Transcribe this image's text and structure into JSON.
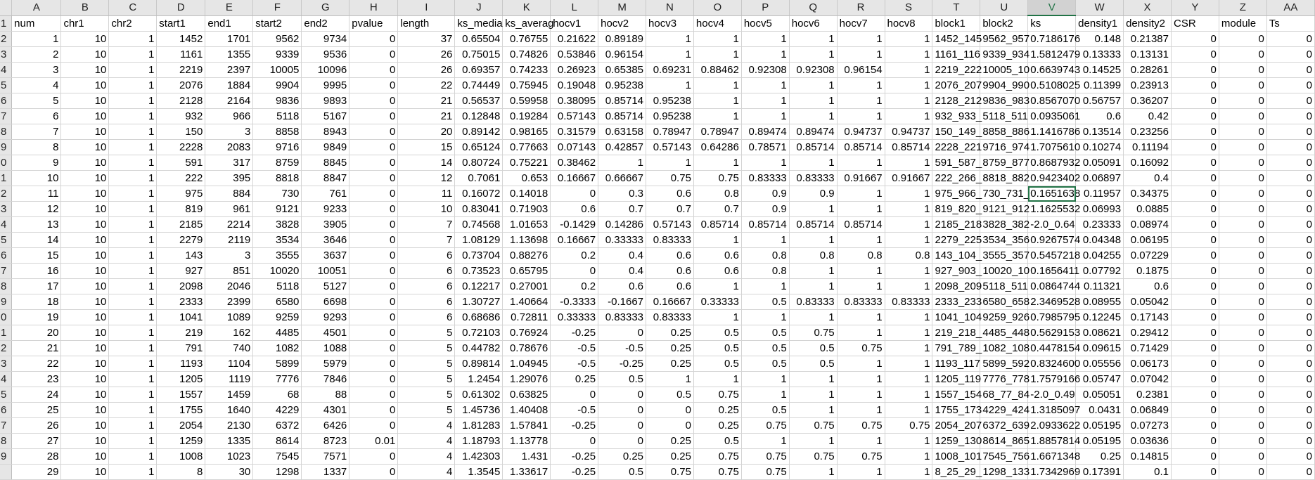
{
  "sheet": {
    "columns": [
      "A",
      "B",
      "C",
      "D",
      "E",
      "F",
      "G",
      "H",
      "I",
      "J",
      "K",
      "L",
      "M",
      "N",
      "O",
      "P",
      "Q",
      "R",
      "S",
      "T",
      "U",
      "V",
      "W",
      "X",
      "Y",
      "Z",
      "AA"
    ],
    "selected_column": "V",
    "row_labels": [
      "1",
      "2",
      "3",
      "4",
      "5",
      "6",
      "7",
      "8",
      "9",
      "0",
      "1",
      "2",
      "3",
      "4",
      "5",
      "6",
      "7",
      "8",
      "9",
      "0",
      "1",
      "2",
      "3",
      "4",
      "5",
      "6",
      "7",
      "8",
      "9"
    ],
    "active_cell": {
      "row": 11,
      "col": 21
    },
    "rows": [
      [
        "num",
        "chr1",
        "chr2",
        "start1",
        "end1",
        "start2",
        "end2",
        "pvalue",
        "length",
        "ks_media",
        "ks_averag",
        "hocv1",
        "hocv2",
        "hocv3",
        "hocv4",
        "hocv5",
        "hocv6",
        "hocv7",
        "hocv8",
        "block1",
        "block2",
        "ks",
        "density1",
        "density2",
        "CSR",
        "module",
        "Ts"
      ],
      [
        "1",
        "10",
        "1",
        "1452",
        "1701",
        "9562",
        "9734",
        "0",
        "37",
        "0.65504",
        "0.76755",
        "0.21622",
        "0.89189",
        "1",
        "1",
        "1",
        "1",
        "1",
        "1",
        "1452_145",
        "9562_957",
        "0.7186176",
        "0.148",
        "0.21387",
        "0",
        "0",
        "0"
      ],
      [
        "2",
        "10",
        "1",
        "1161",
        "1355",
        "9339",
        "9536",
        "0",
        "26",
        "0.75015",
        "0.74826",
        "0.53846",
        "0.96154",
        "1",
        "1",
        "1",
        "1",
        "1",
        "1",
        "1161_116",
        "9339_934",
        "1.5812479",
        "0.13333",
        "0.13131",
        "0",
        "0",
        "0"
      ],
      [
        "3",
        "10",
        "1",
        "2219",
        "2397",
        "10005",
        "10096",
        "0",
        "26",
        "0.69357",
        "0.74233",
        "0.26923",
        "0.65385",
        "0.69231",
        "0.88462",
        "0.92308",
        "0.92308",
        "0.96154",
        "1",
        "2219_222",
        "10005_10",
        "0.6639743",
        "0.14525",
        "0.28261",
        "0",
        "0",
        "0"
      ],
      [
        "4",
        "10",
        "1",
        "2076",
        "1884",
        "9904",
        "9995",
        "0",
        "22",
        "0.74449",
        "0.75945",
        "0.19048",
        "0.95238",
        "1",
        "1",
        "1",
        "1",
        "1",
        "1",
        "2076_207",
        "9904_990",
        "0.5108025",
        "0.11399",
        "0.23913",
        "0",
        "0",
        "0"
      ],
      [
        "5",
        "10",
        "1",
        "2128",
        "2164",
        "9836",
        "9893",
        "0",
        "21",
        "0.56537",
        "0.59958",
        "0.38095",
        "0.85714",
        "0.95238",
        "1",
        "1",
        "1",
        "1",
        "1",
        "2128_212",
        "9836_983",
        "0.8567070",
        "0.56757",
        "0.36207",
        "0",
        "0",
        "0"
      ],
      [
        "6",
        "10",
        "1",
        "932",
        "966",
        "5118",
        "5167",
        "0",
        "21",
        "0.12848",
        "0.19284",
        "0.57143",
        "0.85714",
        "0.95238",
        "1",
        "1",
        "1",
        "1",
        "1",
        "932_933_",
        "5118_511",
        "0.0935061",
        "0.6",
        "0.42",
        "0",
        "0",
        "0"
      ],
      [
        "7",
        "10",
        "1",
        "150",
        "3",
        "8858",
        "8943",
        "0",
        "20",
        "0.89142",
        "0.98165",
        "0.31579",
        "0.63158",
        "0.78947",
        "0.78947",
        "0.89474",
        "0.89474",
        "0.94737",
        "0.94737",
        "150_149_",
        "8858_886",
        "1.1416786",
        "0.13514",
        "0.23256",
        "0",
        "0",
        "0"
      ],
      [
        "8",
        "10",
        "1",
        "2228",
        "2083",
        "9716",
        "9849",
        "0",
        "15",
        "0.65124",
        "0.77663",
        "0.07143",
        "0.42857",
        "0.57143",
        "0.64286",
        "0.78571",
        "0.85714",
        "0.85714",
        "0.85714",
        "2228_221",
        "9716_974",
        "1.7075610",
        "0.10274",
        "0.11194",
        "0",
        "0",
        "0"
      ],
      [
        "9",
        "10",
        "1",
        "591",
        "317",
        "8759",
        "8845",
        "0",
        "14",
        "0.80724",
        "0.75221",
        "0.38462",
        "1",
        "1",
        "1",
        "1",
        "1",
        "1",
        "1",
        "591_587_",
        "8759_877",
        "0.8687932",
        "0.05091",
        "0.16092",
        "0",
        "0",
        "0"
      ],
      [
        "10",
        "10",
        "1",
        "222",
        "395",
        "8818",
        "8847",
        "0",
        "12",
        "0.7061",
        "0.653",
        "0.16667",
        "0.66667",
        "0.75",
        "0.75",
        "0.83333",
        "0.83333",
        "0.91667",
        "0.91667",
        "222_266_",
        "8818_882",
        "0.9423402",
        "0.06897",
        "0.4",
        "0",
        "0",
        "0"
      ],
      [
        "11",
        "10",
        "1",
        "975",
        "884",
        "730",
        "761",
        "0",
        "11",
        "0.16072",
        "0.14018",
        "0",
        "0.3",
        "0.6",
        "0.8",
        "0.9",
        "0.9",
        "1",
        "1",
        "975_966_",
        "730_731_",
        "0.1651638",
        "0.11957",
        "0.34375",
        "0",
        "0",
        "0"
      ],
      [
        "12",
        "10",
        "1",
        "819",
        "961",
        "9121",
        "9233",
        "0",
        "10",
        "0.83041",
        "0.71903",
        "0.6",
        "0.7",
        "0.7",
        "0.7",
        "0.9",
        "1",
        "1",
        "1",
        "819_820_",
        "9121_912",
        "1.1625532",
        "0.06993",
        "0.0885",
        "0",
        "0",
        "0"
      ],
      [
        "13",
        "10",
        "1",
        "2185",
        "2214",
        "3828",
        "3905",
        "0",
        "7",
        "0.74568",
        "1.01653",
        "-0.1429",
        "0.14286",
        "0.57143",
        "0.85714",
        "0.85714",
        "0.85714",
        "0.85714",
        "1",
        "2185_218",
        "3828_382",
        "-2.0_0.64",
        "0.23333",
        "0.08974",
        "0",
        "0",
        "0"
      ],
      [
        "14",
        "10",
        "1",
        "2279",
        "2119",
        "3534",
        "3646",
        "0",
        "7",
        "1.08129",
        "1.13698",
        "0.16667",
        "0.33333",
        "0.83333",
        "1",
        "1",
        "1",
        "1",
        "1",
        "2279_225",
        "3534_356",
        "0.9267574",
        "0.04348",
        "0.06195",
        "0",
        "0",
        "0"
      ],
      [
        "15",
        "10",
        "1",
        "143",
        "3",
        "3555",
        "3637",
        "0",
        "6",
        "0.73704",
        "0.88276",
        "0.2",
        "0.4",
        "0.6",
        "0.6",
        "0.8",
        "0.8",
        "0.8",
        "0.8",
        "143_104_",
        "3555_357",
        "0.5457218",
        "0.04255",
        "0.07229",
        "0",
        "0",
        "0"
      ],
      [
        "16",
        "10",
        "1",
        "927",
        "851",
        "10020",
        "10051",
        "0",
        "6",
        "0.73523",
        "0.65795",
        "0",
        "0.4",
        "0.6",
        "0.6",
        "0.8",
        "1",
        "1",
        "1",
        "927_903_",
        "10020_10",
        "0.1656411",
        "0.07792",
        "0.1875",
        "0",
        "0",
        "0"
      ],
      [
        "17",
        "10",
        "1",
        "2098",
        "2046",
        "5118",
        "5127",
        "0",
        "6",
        "0.12217",
        "0.27001",
        "0.2",
        "0.6",
        "0.6",
        "1",
        "1",
        "1",
        "1",
        "1",
        "2098_209",
        "5118_511",
        "0.0864744",
        "0.11321",
        "0.6",
        "0",
        "0",
        "0"
      ],
      [
        "18",
        "10",
        "1",
        "2333",
        "2399",
        "6580",
        "6698",
        "0",
        "6",
        "1.30727",
        "1.40664",
        "-0.3333",
        "-0.1667",
        "0.16667",
        "0.33333",
        "0.5",
        "0.83333",
        "0.83333",
        "0.83333",
        "2333_233",
        "6580_658",
        "2.3469528",
        "0.08955",
        "0.05042",
        "0",
        "0",
        "0"
      ],
      [
        "19",
        "10",
        "1",
        "1041",
        "1089",
        "9259",
        "9293",
        "0",
        "6",
        "0.68686",
        "0.72811",
        "0.33333",
        "0.83333",
        "0.83333",
        "1",
        "1",
        "1",
        "1",
        "1",
        "1041_104",
        "9259_926",
        "0.7985795",
        "0.12245",
        "0.17143",
        "0",
        "0",
        "0"
      ],
      [
        "20",
        "10",
        "1",
        "219",
        "162",
        "4485",
        "4501",
        "0",
        "5",
        "0.72103",
        "0.76924",
        "-0.25",
        "0",
        "0.25",
        "0.5",
        "0.5",
        "0.75",
        "1",
        "1",
        "219_218_",
        "4485_448",
        "0.5629153",
        "0.08621",
        "0.29412",
        "0",
        "0",
        "0"
      ],
      [
        "21",
        "10",
        "1",
        "791",
        "740",
        "1082",
        "1088",
        "0",
        "5",
        "0.44782",
        "0.78676",
        "-0.5",
        "-0.5",
        "0.25",
        "0.5",
        "0.5",
        "0.5",
        "0.75",
        "1",
        "791_789_",
        "1082_108",
        "0.4478154",
        "0.09615",
        "0.71429",
        "0",
        "0",
        "0"
      ],
      [
        "22",
        "10",
        "1",
        "1193",
        "1104",
        "5899",
        "5979",
        "0",
        "5",
        "0.89814",
        "1.04945",
        "-0.5",
        "-0.25",
        "0.25",
        "0.5",
        "0.5",
        "0.5",
        "1",
        "1",
        "1193_117",
        "5899_592",
        "0.8324600",
        "0.05556",
        "0.06173",
        "0",
        "0",
        "0"
      ],
      [
        "23",
        "10",
        "1",
        "1205",
        "1119",
        "7776",
        "7846",
        "0",
        "5",
        "1.2454",
        "1.29076",
        "0.25",
        "0.5",
        "1",
        "1",
        "1",
        "1",
        "1",
        "1",
        "1205_119",
        "7776_778",
        "1.7579166",
        "0.05747",
        "0.07042",
        "0",
        "0",
        "0"
      ],
      [
        "24",
        "10",
        "1",
        "1557",
        "1459",
        "68",
        "88",
        "0",
        "5",
        "0.61302",
        "0.63825",
        "0",
        "0",
        "0.5",
        "0.75",
        "1",
        "1",
        "1",
        "1",
        "1557_154",
        "68_77_84",
        "-2.0_0.49",
        "0.05051",
        "0.2381",
        "0",
        "0",
        "0"
      ],
      [
        "25",
        "10",
        "1",
        "1755",
        "1640",
        "4229",
        "4301",
        "0",
        "5",
        "1.45736",
        "1.40408",
        "-0.5",
        "0",
        "0",
        "0.25",
        "0.5",
        "1",
        "1",
        "1",
        "1755_173",
        "4229_424",
        "1.3185097",
        "0.0431",
        "0.06849",
        "0",
        "0",
        "0"
      ],
      [
        "26",
        "10",
        "1",
        "2054",
        "2130",
        "6372",
        "6426",
        "0",
        "4",
        "1.81283",
        "1.57841",
        "-0.25",
        "0",
        "0",
        "0.25",
        "0.75",
        "0.75",
        "0.75",
        "0.75",
        "2054_207",
        "6372_639",
        "2.0933622",
        "0.05195",
        "0.07273",
        "0",
        "0",
        "0"
      ],
      [
        "27",
        "10",
        "1",
        "1259",
        "1335",
        "8614",
        "8723",
        "0.01",
        "4",
        "1.18793",
        "1.13778",
        "0",
        "0",
        "0.25",
        "0.5",
        "1",
        "1",
        "1",
        "1",
        "1259_130",
        "8614_865",
        "1.8857814",
        "0.05195",
        "0.03636",
        "0",
        "0",
        "0"
      ],
      [
        "28",
        "10",
        "1",
        "1008",
        "1023",
        "7545",
        "7571",
        "0",
        "4",
        "1.42303",
        "1.431",
        "-0.25",
        "0.25",
        "0.25",
        "0.75",
        "0.75",
        "0.75",
        "0.75",
        "1",
        "1008_101",
        "7545_756",
        "1.6671348",
        "0.25",
        "0.14815",
        "0",
        "0",
        "0"
      ],
      [
        "29",
        "10",
        "1",
        "8",
        "30",
        "1298",
        "1337",
        "0",
        "4",
        "1.3545",
        "1.33617",
        "-0.25",
        "0.5",
        "0.75",
        "0.75",
        "0.75",
        "1",
        "1",
        "1",
        "8_25_29_",
        "1298_133",
        "1.7342969",
        "0.17391",
        "0.1",
        "0",
        "0",
        "0"
      ]
    ],
    "text_columns": [
      19,
      20
    ]
  }
}
